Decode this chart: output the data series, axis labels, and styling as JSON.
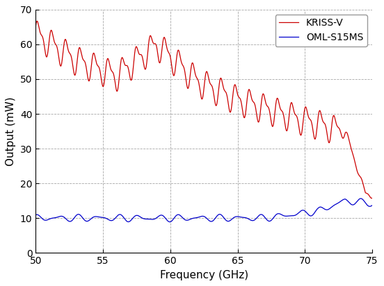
{
  "title": "",
  "xlabel": "Frequency (GHz)",
  "ylabel": "Output (mW)",
  "xlim": [
    50,
    75
  ],
  "ylim": [
    0,
    70
  ],
  "xticks": [
    50,
    55,
    60,
    65,
    70,
    75
  ],
  "yticks": [
    0,
    10,
    20,
    30,
    40,
    50,
    60,
    70
  ],
  "kriss_color": "#cc0000",
  "oml_color": "#0000cc",
  "background_color": "#ffffff",
  "grid_color": "#808080",
  "legend_labels": [
    "KRISS-V",
    "OML-S15MS"
  ],
  "figsize": [
    5.52,
    4.12
  ],
  "dpi": 100
}
